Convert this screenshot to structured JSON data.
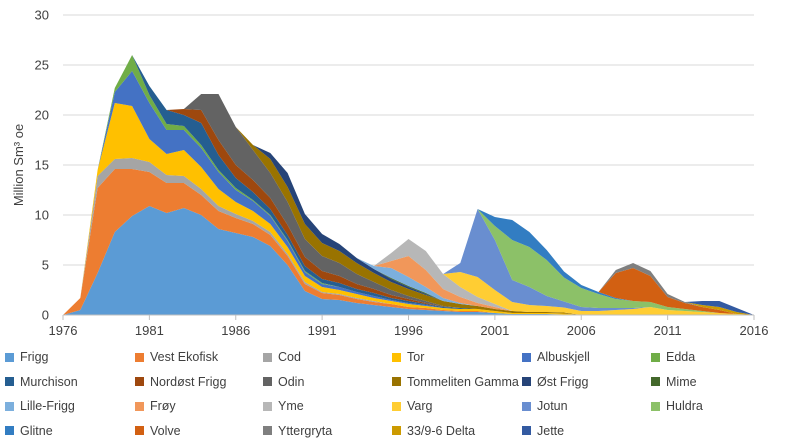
{
  "chart_data": {
    "type": "area",
    "stacked": true,
    "ylabel": "Million Sm³ oe",
    "xlabel": "",
    "ylim": [
      0,
      30
    ],
    "yticks": [
      "0",
      "5",
      "10",
      "15",
      "20",
      "25",
      "30"
    ],
    "xticks": [
      "1976",
      "1981",
      "1986",
      "1991",
      "1996",
      "2001",
      "2006",
      "2011",
      "2016"
    ],
    "x": [
      1976,
      1977,
      1978,
      1979,
      1980,
      1981,
      1982,
      1983,
      1984,
      1985,
      1986,
      1987,
      1988,
      1989,
      1990,
      1991,
      1992,
      1993,
      1994,
      1995,
      1996,
      1997,
      1998,
      1999,
      2000,
      2001,
      2002,
      2003,
      2004,
      2005,
      2006,
      2007,
      2008,
      2009,
      2010,
      2011,
      2012,
      2013,
      2014,
      2015,
      2016
    ],
    "series": [
      {
        "name": "Frigg",
        "color": "#5b9bd5",
        "values": [
          0,
          0.5,
          4.2,
          8.3,
          9.9,
          10.9,
          10.2,
          10.7,
          10.0,
          8.6,
          8.2,
          7.8,
          6.9,
          5.0,
          2.4,
          1.6,
          1.5,
          1.2,
          1.0,
          0.8,
          0.6,
          0.5,
          0.4,
          0.3,
          0.3,
          0.2,
          0.1,
          0.1,
          0.1,
          0.05,
          0,
          0,
          0,
          0,
          0,
          0,
          0,
          0,
          0,
          0,
          0
        ]
      },
      {
        "name": "Vest Ekofisk",
        "color": "#ed7d31",
        "values": [
          0,
          1.2,
          8.5,
          6.3,
          4.7,
          3.4,
          3.0,
          2.5,
          2.0,
          1.8,
          1.5,
          1.3,
          1.1,
          0.9,
          0.7,
          0.6,
          0.5,
          0.4,
          0.3,
          0.3,
          0.2,
          0.2,
          0.1,
          0.1,
          0.1,
          0,
          0,
          0,
          0,
          0,
          0,
          0,
          0,
          0,
          0,
          0,
          0,
          0,
          0,
          0,
          0
        ]
      },
      {
        "name": "Cod",
        "color": "#a5a5a5",
        "values": [
          0,
          0,
          1.2,
          1.0,
          1.1,
          1.0,
          0.8,
          0.7,
          0.6,
          0.5,
          0.4,
          0.3,
          0.3,
          0.2,
          0.2,
          0.1,
          0.1,
          0.1,
          0.1,
          0,
          0,
          0,
          0,
          0,
          0,
          0,
          0,
          0,
          0,
          0,
          0,
          0,
          0,
          0,
          0,
          0,
          0,
          0,
          0,
          0,
          0
        ]
      },
      {
        "name": "Tor",
        "color": "#ffc000",
        "values": [
          0,
          0,
          0.6,
          5.6,
          5.2,
          2.3,
          2.1,
          2.6,
          2.2,
          1.7,
          1.2,
          1.0,
          0.8,
          0.7,
          0.6,
          0.5,
          0.4,
          0.4,
          0.3,
          0.3,
          0.3,
          0.2,
          0.2,
          0.2,
          0.2,
          0.2,
          0.1,
          0.1,
          0.1,
          0.1,
          0,
          0,
          0,
          0,
          0,
          0,
          0,
          0,
          0,
          0,
          0
        ]
      },
      {
        "name": "Albuskjell",
        "color": "#4472c4",
        "values": [
          0,
          0,
          0,
          1.1,
          3.5,
          3.6,
          2.4,
          2.0,
          1.9,
          1.7,
          1.2,
          1.0,
          0.8,
          0.6,
          0.4,
          0.3,
          0.3,
          0.2,
          0.2,
          0.1,
          0.1,
          0.1,
          0,
          0,
          0,
          0,
          0,
          0,
          0,
          0,
          0,
          0,
          0,
          0,
          0,
          0,
          0,
          0,
          0,
          0,
          0
        ]
      },
      {
        "name": "Edda",
        "color": "#70ad47",
        "values": [
          0,
          0,
          0,
          0.4,
          1.6,
          0.8,
          0.6,
          0.4,
          0.3,
          0.2,
          0.2,
          0.1,
          0.1,
          0.1,
          0.1,
          0.1,
          0,
          0,
          0,
          0,
          0,
          0,
          0,
          0,
          0,
          0,
          0,
          0,
          0,
          0,
          0,
          0,
          0,
          0,
          0,
          0,
          0,
          0,
          0,
          0,
          0
        ]
      },
      {
        "name": "Murchison",
        "color": "#255e91",
        "values": [
          0,
          0,
          0,
          0,
          0,
          0.9,
          1.4,
          1.1,
          2.2,
          1.5,
          1.0,
          0.8,
          0.6,
          0.5,
          0.5,
          0.4,
          0.4,
          0.3,
          0.3,
          0.2,
          0.2,
          0.1,
          0.1,
          0.1,
          0,
          0,
          0,
          0,
          0,
          0,
          0,
          0,
          0,
          0,
          0,
          0,
          0,
          0,
          0,
          0,
          0
        ]
      },
      {
        "name": "Nordøst Frigg",
        "color": "#9e480e",
        "values": [
          0,
          0,
          0,
          0,
          0,
          0,
          0,
          0.6,
          1.3,
          1.5,
          1.3,
          1.2,
          1.1,
          1.0,
          0.9,
          0.8,
          0.7,
          0.5,
          0.4,
          0.3,
          0.2,
          0.1,
          0,
          0,
          0,
          0,
          0,
          0,
          0,
          0,
          0,
          0,
          0,
          0,
          0,
          0,
          0,
          0,
          0,
          0,
          0
        ]
      },
      {
        "name": "Odin",
        "color": "#636363",
        "values": [
          0,
          0,
          0,
          0,
          0,
          0,
          0,
          0,
          1.6,
          4.6,
          3.8,
          3.0,
          2.5,
          2.3,
          1.8,
          1.5,
          1.3,
          1.0,
          0.7,
          0.5,
          0.3,
          0.2,
          0.1,
          0,
          0,
          0,
          0,
          0,
          0,
          0,
          0,
          0,
          0,
          0,
          0,
          0,
          0,
          0,
          0,
          0,
          0
        ]
      },
      {
        "name": "Tommeliten Gamma",
        "color": "#997300",
        "values": [
          0,
          0,
          0,
          0,
          0,
          0,
          0,
          0,
          0,
          0,
          0,
          0.5,
          1.4,
          1.5,
          1.5,
          1.3,
          1.2,
          1.1,
          0.9,
          0.8,
          0.7,
          0.6,
          0.5,
          0.4,
          0.3,
          0.2,
          0.2,
          0.1,
          0.1,
          0.1,
          0,
          0,
          0,
          0,
          0,
          0,
          0,
          0,
          0,
          0,
          0
        ]
      },
      {
        "name": "Øst Frigg",
        "color": "#264478",
        "values": [
          0,
          0,
          0,
          0,
          0,
          0,
          0,
          0,
          0,
          0,
          0,
          0,
          0.6,
          1.4,
          1.0,
          0.9,
          0.7,
          0.5,
          0.4,
          0.3,
          0.2,
          0.1,
          0,
          0,
          0,
          0,
          0,
          0,
          0,
          0,
          0,
          0,
          0,
          0,
          0,
          0,
          0,
          0,
          0,
          0,
          0
        ]
      },
      {
        "name": "Mime",
        "color": "#43682b",
        "values": [
          0,
          0,
          0,
          0,
          0,
          0,
          0,
          0,
          0,
          0,
          0,
          0,
          0,
          0,
          0,
          0,
          0,
          0,
          0,
          0.1,
          0.1,
          0.1,
          0,
          0,
          0,
          0,
          0,
          0,
          0,
          0,
          0,
          0,
          0,
          0,
          0,
          0,
          0,
          0,
          0,
          0,
          0
        ]
      },
      {
        "name": "Lille-Frigg",
        "color": "#7cafdd",
        "values": [
          0,
          0,
          0,
          0,
          0,
          0,
          0,
          0,
          0,
          0,
          0,
          0,
          0,
          0,
          0,
          0,
          0,
          0,
          0.3,
          1.0,
          0.9,
          0.6,
          0.3,
          0.1,
          0,
          0,
          0,
          0,
          0,
          0,
          0,
          0,
          0,
          0,
          0,
          0,
          0,
          0,
          0,
          0,
          0
        ]
      },
      {
        "name": "Frøy",
        "color": "#f1975a",
        "values": [
          0,
          0,
          0,
          0,
          0,
          0,
          0,
          0,
          0,
          0,
          0,
          0,
          0,
          0,
          0,
          0,
          0,
          0,
          0,
          0.7,
          2.1,
          1.7,
          0.9,
          0.6,
          0.3,
          0.2,
          0,
          0,
          0,
          0,
          0,
          0,
          0,
          0,
          0,
          0,
          0,
          0,
          0,
          0,
          0
        ]
      },
      {
        "name": "Yme",
        "color": "#b7b7b7",
        "values": [
          0,
          0,
          0,
          0,
          0,
          0,
          0,
          0,
          0,
          0,
          0,
          0,
          0,
          0,
          0,
          0,
          0,
          0,
          0,
          0.8,
          1.7,
          1.9,
          1.5,
          1.0,
          0.6,
          0.3,
          0,
          0,
          0,
          0,
          0,
          0,
          0,
          0,
          0,
          0,
          0,
          0,
          0,
          0,
          0
        ]
      },
      {
        "name": "Varg",
        "color": "#ffcd33",
        "values": [
          0,
          0,
          0,
          0,
          0,
          0,
          0,
          0,
          0,
          0,
          0,
          0,
          0,
          0,
          0,
          0,
          0,
          0,
          0,
          0,
          0,
          0,
          0,
          1.5,
          2.0,
          1.4,
          0.9,
          0.7,
          0.6,
          0.5,
          0.4,
          0.4,
          0.5,
          0.6,
          0.8,
          0.5,
          0.4,
          0.3,
          0.2,
          0.1,
          0
        ]
      },
      {
        "name": "Jotun",
        "color": "#698ed0",
        "values": [
          0,
          0,
          0,
          0,
          0,
          0,
          0,
          0,
          0,
          0,
          0,
          0,
          0,
          0,
          0,
          0,
          0,
          0,
          0,
          0,
          0,
          0,
          0,
          0.9,
          6.8,
          5.0,
          2.2,
          1.8,
          1.0,
          0.6,
          0.4,
          0.3,
          0.2,
          0.1,
          0,
          0,
          0,
          0,
          0,
          0,
          0
        ]
      },
      {
        "name": "Huldra",
        "color": "#8cc168",
        "values": [
          0,
          0,
          0,
          0,
          0,
          0,
          0,
          0,
          0,
          0,
          0,
          0,
          0,
          0,
          0,
          0,
          0,
          0,
          0,
          0,
          0,
          0,
          0,
          0,
          0,
          1.4,
          4.0,
          4.0,
          3.6,
          2.4,
          1.9,
          1.4,
          0.9,
          0.7,
          0.5,
          0.3,
          0.2,
          0.1,
          0,
          0,
          0
        ]
      },
      {
        "name": "Glitne",
        "color": "#327dc2",
        "values": [
          0,
          0,
          0,
          0,
          0,
          0,
          0,
          0,
          0,
          0,
          0,
          0,
          0,
          0,
          0,
          0,
          0,
          0,
          0,
          0,
          0,
          0,
          0,
          0,
          0,
          0.9,
          2.0,
          1.5,
          1.0,
          0.6,
          0.3,
          0.2,
          0.1,
          0,
          0,
          0,
          0,
          0,
          0,
          0,
          0
        ]
      },
      {
        "name": "Volve",
        "color": "#d26012",
        "values": [
          0,
          0,
          0,
          0,
          0,
          0,
          0,
          0,
          0,
          0,
          0,
          0,
          0,
          0,
          0,
          0,
          0,
          0,
          0,
          0,
          0,
          0,
          0,
          0,
          0,
          0,
          0,
          0,
          0,
          0,
          0,
          0,
          2.5,
          3.3,
          2.6,
          1.0,
          0.6,
          0.4,
          0.3,
          0,
          0
        ]
      },
      {
        "name": "Yttergryta",
        "color": "#7f7f7f",
        "values": [
          0,
          0,
          0,
          0,
          0,
          0,
          0,
          0,
          0,
          0,
          0,
          0,
          0,
          0,
          0,
          0,
          0,
          0,
          0,
          0,
          0,
          0,
          0,
          0,
          0,
          0,
          0,
          0,
          0,
          0,
          0,
          0,
          0.3,
          0.5,
          0.5,
          0.3,
          0.1,
          0,
          0,
          0,
          0
        ]
      },
      {
        "name": "33/9-6 Delta",
        "color": "#cc9a00",
        "values": [
          0,
          0,
          0,
          0,
          0,
          0,
          0,
          0,
          0,
          0,
          0,
          0,
          0,
          0,
          0,
          0,
          0,
          0,
          0,
          0,
          0,
          0,
          0,
          0,
          0,
          0,
          0,
          0,
          0,
          0,
          0,
          0,
          0,
          0,
          0,
          0,
          0,
          0.2,
          0.3,
          0.2,
          0
        ]
      },
      {
        "name": "Jette",
        "color": "#335aa1",
        "values": [
          0,
          0,
          0,
          0,
          0,
          0,
          0,
          0,
          0,
          0,
          0,
          0,
          0,
          0,
          0,
          0,
          0,
          0,
          0,
          0,
          0,
          0,
          0,
          0,
          0,
          0,
          0,
          0,
          0,
          0,
          0,
          0,
          0,
          0,
          0,
          0,
          0,
          0.4,
          0.6,
          0.4,
          0
        ]
      }
    ]
  }
}
